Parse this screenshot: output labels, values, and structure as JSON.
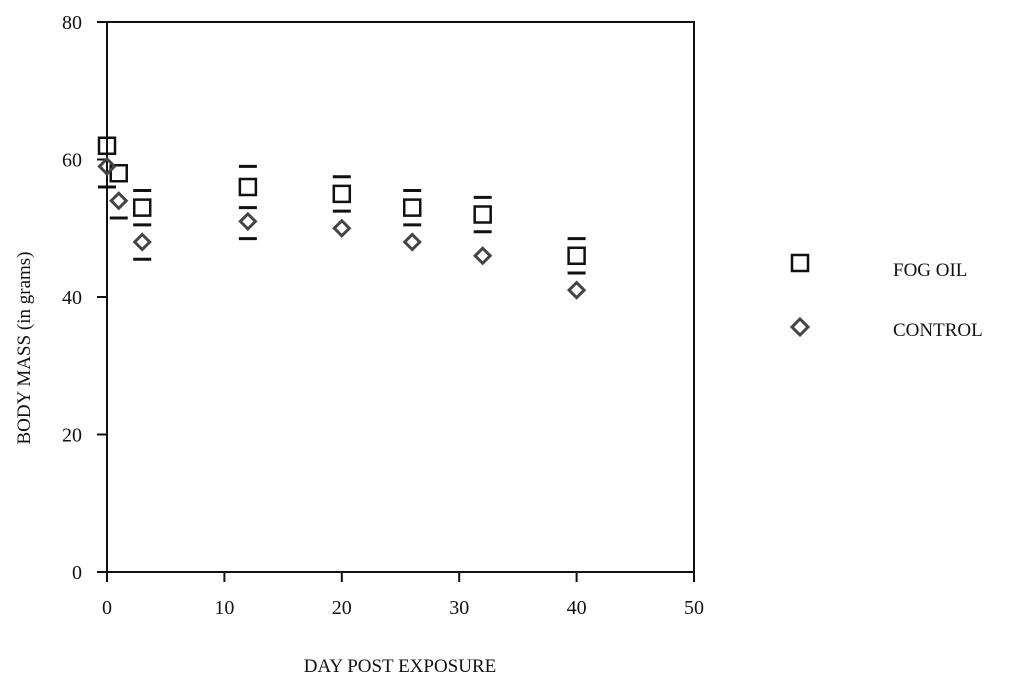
{
  "chart_data": {
    "type": "scatter",
    "xlabel": "DAY POST EXPOSURE",
    "ylabel": "BODY MASS (in grams)",
    "xlim": [
      0,
      50
    ],
    "ylim": [
      0,
      80
    ],
    "xticks": [
      0,
      10,
      20,
      30,
      40,
      50
    ],
    "yticks": [
      0,
      20,
      40,
      60,
      80
    ],
    "grid": false,
    "legend_position": "right",
    "series": [
      {
        "name": "FOG OIL",
        "marker": "square",
        "color": "#111111",
        "x": [
          0,
          1,
          3,
          12,
          20,
          26,
          32,
          40
        ],
        "y": [
          62,
          58,
          53,
          56,
          55,
          53,
          52,
          46
        ],
        "error_upper": [
          null,
          null,
          55.5,
          59,
          57.5,
          55.5,
          54.5,
          48.5
        ],
        "error_lower": [
          null,
          null,
          50.5,
          53,
          52.5,
          50.5,
          49.5,
          43.5
        ]
      },
      {
        "name": "CONTROL",
        "marker": "diamond",
        "color": "#444444",
        "x": [
          0,
          1,
          3,
          12,
          20,
          26,
          32,
          40
        ],
        "y": [
          59,
          54,
          48,
          51,
          50,
          48,
          46,
          41
        ],
        "error_upper": [
          null,
          null,
          null,
          null,
          null,
          null,
          null,
          null
        ],
        "error_lower": [
          56,
          51.5,
          45.5,
          48.5,
          null,
          null,
          null,
          null
        ]
      }
    ]
  }
}
